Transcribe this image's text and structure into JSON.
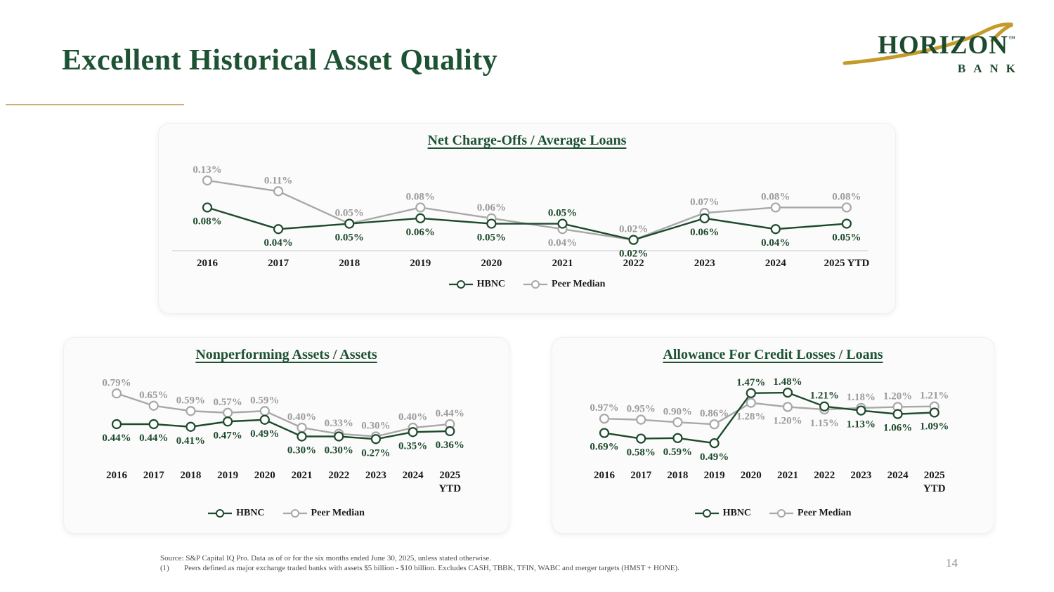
{
  "slide": {
    "title": "Excellent Historical Asset Quality",
    "page_number": "14",
    "footnotes": [
      {
        "label": "",
        "text": "Source: S&P Capital IQ Pro. Data as of or for the six months ended June 30, 2025, unless stated otherwise."
      },
      {
        "label": "(1)",
        "text": "Peers defined as major exchange traded banks with assets $5 billion - $10 billion. Excludes CASH, TBBK, TFIN, WABC and merger targets (HMST + HONE)."
      }
    ]
  },
  "logo": {
    "name": "HORIZON",
    "tm": "™",
    "subname": "BANK"
  },
  "legend": {
    "hbnc_label": "HBNC",
    "peer_label": "Peer Median"
  },
  "colors": {
    "hbnc_green": "#1d4a2c",
    "hbnc_label": "#1d4a2c",
    "peer_gray": "#a8a8a8",
    "peer_label_gray": "#9b9b9b",
    "year_label": "#1a1a1a",
    "axis_line_gray": "#d9d9d9",
    "gold": "#c49b2a",
    "title_green": "#1d5233"
  },
  "chart_data": [
    {
      "type": "line",
      "title": "Net Charge-Offs / Average Loans",
      "categories": [
        "2016",
        "2017",
        "2018",
        "2019",
        "2020",
        "2021",
        "2022",
        "2023",
        "2024",
        "2025 YTD"
      ],
      "series": [
        {
          "name": "HBNC",
          "values": [
            0.08,
            0.04,
            0.05,
            0.06,
            0.05,
            0.05,
            0.02,
            0.06,
            0.04,
            0.05
          ]
        },
        {
          "name": "Peer Median",
          "values": [
            0.13,
            0.11,
            0.05,
            0.08,
            0.06,
            0.04,
            0.02,
            0.07,
            0.08,
            0.08
          ]
        }
      ],
      "value_suffix": "%",
      "ylim": [
        0,
        0.13
      ],
      "grid": false,
      "axis_line": true,
      "legend_position": "bottom"
    },
    {
      "type": "line",
      "title": "Nonperforming Assets / Assets",
      "categories": [
        "2016",
        "2017",
        "2018",
        "2019",
        "2020",
        "2021",
        "2022",
        "2023",
        "2024",
        "2025\nYTD"
      ],
      "series": [
        {
          "name": "HBNC",
          "values": [
            0.44,
            0.44,
            0.41,
            0.47,
            0.49,
            0.3,
            0.3,
            0.27,
            0.35,
            0.36
          ]
        },
        {
          "name": "Peer Median",
          "values": [
            0.79,
            0.65,
            0.59,
            0.57,
            0.59,
            0.4,
            0.33,
            0.3,
            0.4,
            0.44
          ]
        }
      ],
      "value_suffix": "%",
      "ylim": [
        0.2,
        0.8
      ],
      "grid": false,
      "axis_line": false,
      "legend_position": "bottom"
    },
    {
      "type": "line",
      "title": "Allowance For Credit Losses / Loans",
      "categories": [
        "2016",
        "2017",
        "2018",
        "2019",
        "2020",
        "2021",
        "2022",
        "2023",
        "2024",
        "2025\nYTD"
      ],
      "series": [
        {
          "name": "HBNC",
          "values": [
            0.69,
            0.58,
            0.59,
            0.49,
            1.47,
            1.48,
            1.21,
            1.13,
            1.06,
            1.09
          ]
        },
        {
          "name": "Peer Median",
          "values": [
            0.97,
            0.95,
            0.9,
            0.86,
            1.28,
            1.2,
            1.15,
            1.18,
            1.2,
            1.21
          ]
        }
      ],
      "value_suffix": "%",
      "ylim": [
        0.45,
        1.55
      ],
      "grid": false,
      "axis_line": false,
      "legend_position": "bottom"
    }
  ]
}
